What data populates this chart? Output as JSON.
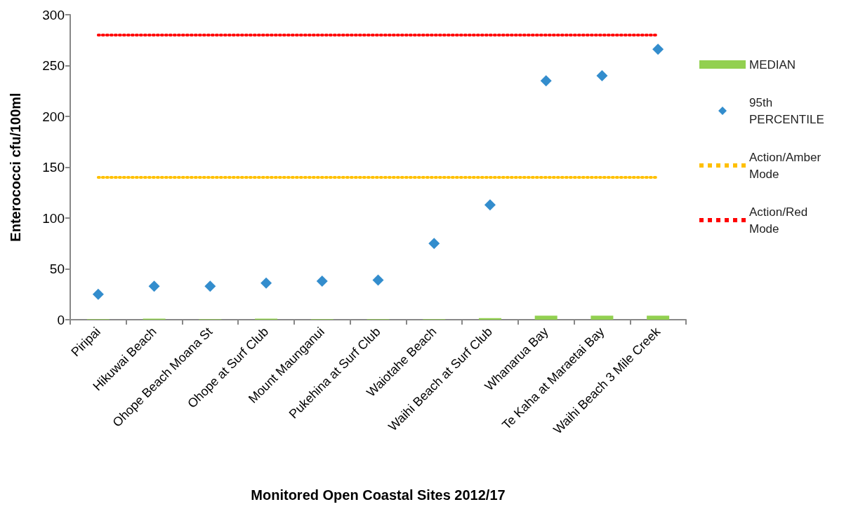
{
  "chart_data": {
    "type": "bar",
    "xlabel": "Monitored Open Coastal Sites 2012/17",
    "ylabel": "Enterococci cfu/100ml",
    "categories": [
      "Piripai",
      "Hikuwai Beach",
      "Ohope Beach Moana St",
      "Ohope at Surf Club",
      "Mount Maunganui",
      "Pukehina at Surf Club",
      "Waiotahe Beach",
      "Waihi Beach at Surf Club",
      "Whanarua Bay",
      "Te Kaha at Maraetai Bay",
      "Waihi Beach 3 Mile Creek"
    ],
    "series": [
      {
        "name": "MEDIAN",
        "color": "#92d050",
        "values": [
          0.5,
          1,
          0.5,
          1,
          0.5,
          0.5,
          0.5,
          1.5,
          4,
          4,
          4
        ]
      },
      {
        "name": "95th PERCENTILE",
        "type": "scatter",
        "marker": "diamond",
        "color": "#0070c0",
        "values": [
          25,
          33,
          33,
          36,
          38,
          39,
          75,
          113,
          235,
          240,
          266
        ]
      },
      {
        "name": "Action/Amber Mode",
        "type": "line",
        "marker": "none",
        "line_style": "dotted",
        "color": "#ffc000",
        "values": [
          140,
          140,
          140,
          140,
          140,
          140,
          140,
          140,
          140,
          140,
          140
        ]
      },
      {
        "name": "Action/Red Mode",
        "type": "line",
        "marker": "none",
        "line_style": "dotted",
        "color": "#ff0000",
        "values": [
          280,
          280,
          280,
          280,
          280,
          280,
          280,
          280,
          280,
          280,
          280
        ]
      }
    ],
    "ylim": [
      0,
      300
    ],
    "yticks": [
      0,
      50,
      100,
      150,
      200,
      250,
      300
    ],
    "grid": false,
    "legend": "right"
  }
}
